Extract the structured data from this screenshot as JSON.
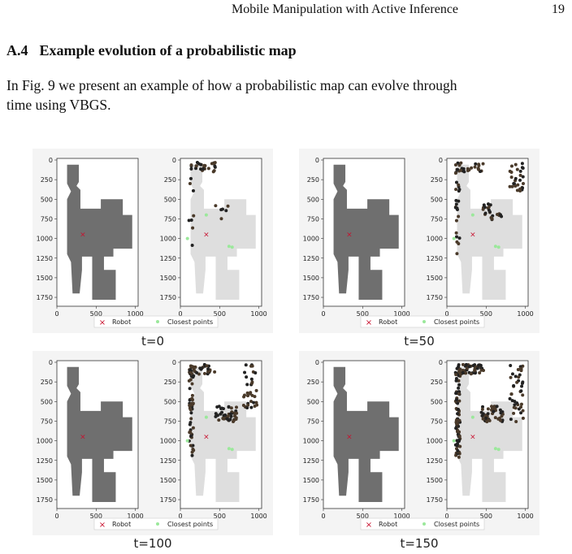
{
  "header": {
    "title": "Mobile Manipulation with Active Inference",
    "page": "19"
  },
  "section": {
    "number": "A.4",
    "title": "Example evolution of a probabilistic map"
  },
  "paragraph": {
    "lines": [
      "In Fig. 9 we present an example of how a probabilistic map can evolve through",
      "time using VBGS."
    ]
  },
  "figure": {
    "yticks": [
      "0",
      "250",
      "500",
      "750",
      "1000",
      "1250",
      "1500",
      "1750"
    ],
    "xticks": [
      "0",
      "500",
      "1000"
    ],
    "legend": [
      "Robot",
      "Closest points"
    ],
    "panels": [
      {
        "caption": "t=0"
      },
      {
        "caption": "t=50"
      },
      {
        "caption": "t=100"
      },
      {
        "caption": "t=150"
      }
    ]
  }
}
